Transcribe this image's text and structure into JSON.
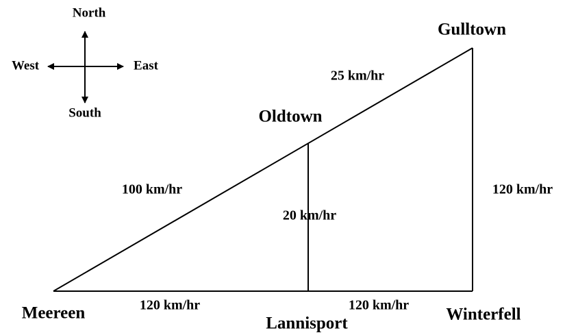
{
  "compass": {
    "north": "North",
    "south": "South",
    "east": "East",
    "west": "West"
  },
  "nodes": [
    {
      "label": "Gulltown"
    },
    {
      "label": "Oldtown"
    },
    {
      "label": "Meereen"
    },
    {
      "label": "Lannisport"
    },
    {
      "label": "Winterfell"
    }
  ],
  "edges": [
    {
      "label": "25 km/hr"
    },
    {
      "label": "100 km/hr"
    },
    {
      "label": "20 km/hr"
    },
    {
      "label": "120 km/hr"
    },
    {
      "label": "120 km/hr"
    },
    {
      "label": "120 km/hr"
    }
  ]
}
